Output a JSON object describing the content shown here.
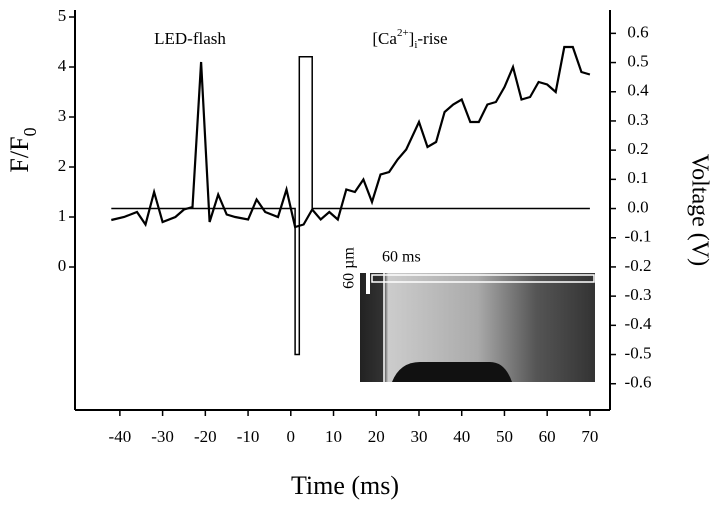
{
  "chart_data": {
    "type": "line",
    "x_label": "Time (ms)",
    "y_label": [
      "F/F",
      "0"
    ],
    "y2_label": "Voltage (V)",
    "annotations": [
      [
        "LED-flash"
      ],
      [
        "[Ca",
        "2+",
        "]",
        "i",
        "-rise"
      ]
    ],
    "inset_labels": [
      "60 ms",
      "60 µm"
    ],
    "xlim": [
      -50.5,
      74.7
    ],
    "xticks": [
      -40,
      -30,
      -20,
      -10,
      0,
      10,
      20,
      30,
      40,
      50,
      60,
      70
    ],
    "ylim": [
      -2.86,
      5.14
    ],
    "yticks": [
      0,
      1,
      2,
      3,
      4,
      5
    ],
    "y2lim": [
      -0.69,
      0.68
    ],
    "y2ticks": [
      -0.6,
      -0.5,
      -0.4,
      -0.3,
      -0.2,
      -0.1,
      {
        "value": 0,
        "label": "0.0"
      },
      0.1,
      0.2,
      0.3,
      0.4,
      0.5,
      0.6
    ],
    "series": [
      {
        "color": "#000000",
        "x": [
          -42,
          -39,
          -36,
          -34,
          -32,
          -30,
          -27,
          -25,
          -23,
          -21,
          -19,
          -17,
          -15,
          -13,
          -10,
          -8,
          -6,
          -3,
          -1,
          1,
          3,
          5,
          7,
          9,
          11,
          13,
          15,
          17,
          19,
          21,
          23,
          25,
          27,
          30,
          32,
          34,
          36,
          38,
          40,
          42,
          44,
          46,
          48,
          50,
          52,
          54,
          56,
          58,
          60,
          62,
          64,
          66,
          68,
          70
        ],
        "values": [
          0.94,
          1.0,
          1.1,
          0.85,
          1.5,
          0.9,
          1.0,
          1.15,
          1.2,
          4.1,
          0.9,
          1.45,
          1.05,
          1.0,
          0.95,
          1.35,
          1.1,
          1.0,
          1.55,
          0.8,
          0.85,
          1.15,
          0.95,
          1.1,
          0.95,
          1.55,
          1.5,
          1.75,
          1.3,
          1.85,
          1.9,
          2.15,
          2.35,
          2.9,
          2.4,
          2.5,
          3.1,
          3.25,
          3.35,
          2.9,
          2.9,
          3.25,
          3.3,
          3.6,
          4.0,
          3.35,
          3.4,
          3.7,
          3.65,
          3.5,
          4.4,
          4.4,
          3.9,
          3.85
        ]
      },
      {
        "color": "#000000",
        "axis": "y2",
        "x": [
          -42,
          1,
          1,
          2,
          2,
          5,
          5,
          70
        ],
        "values": [
          0,
          0,
          -0.5,
          -0.5,
          0.52,
          0.52,
          0,
          0
        ]
      }
    ]
  }
}
